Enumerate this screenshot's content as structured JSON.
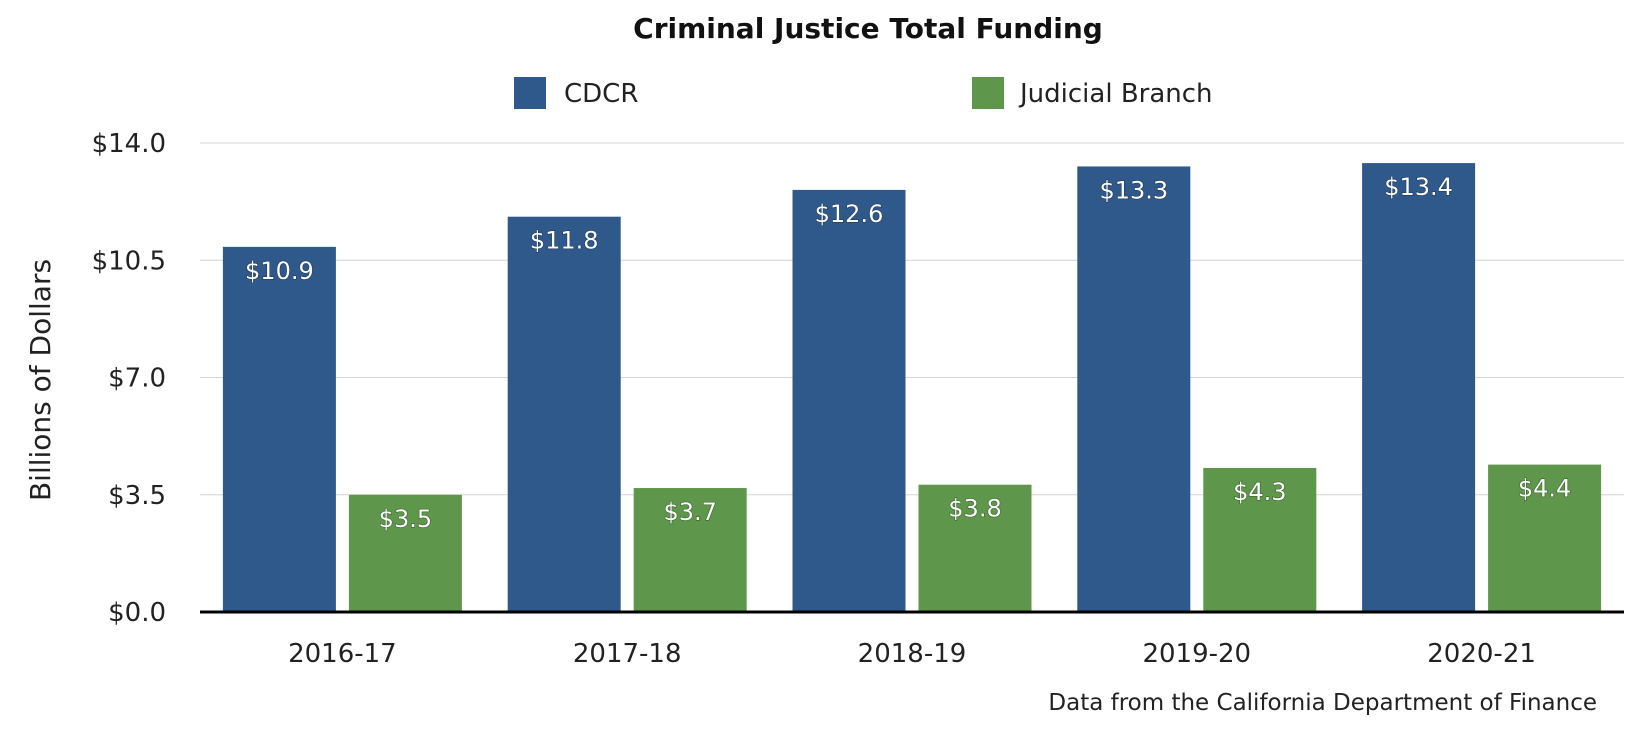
{
  "chart_data": {
    "type": "bar",
    "title": "Criminal Justice Total Funding",
    "ylabel": "Billions of Dollars",
    "xlabel": "",
    "categories": [
      "2016-17",
      "2017-18",
      "2018-19",
      "2019-20",
      "2020-21"
    ],
    "series": [
      {
        "name": "CDCR",
        "color": "#30598b",
        "values": [
          10.9,
          11.8,
          12.6,
          13.3,
          13.4
        ],
        "labels": [
          "$10.9",
          "$11.8",
          "$12.6",
          "$13.3",
          "$13.4"
        ]
      },
      {
        "name": "Judicial Branch",
        "color": "#5e964b",
        "values": [
          3.5,
          3.7,
          3.8,
          4.3,
          4.4
        ],
        "labels": [
          "$3.5",
          "$3.7",
          "$3.8",
          "$4.3",
          "$4.4"
        ]
      }
    ],
    "ylim": [
      0,
      14
    ],
    "yticks": [
      0,
      3.5,
      7,
      10.5,
      14
    ],
    "ytick_labels": [
      "$0.0",
      "$3.5",
      "$7.0",
      "$10.5",
      "$14.0"
    ],
    "grid": true,
    "legend_position": "top-center",
    "source_note": "Data from the California Department of Finance"
  }
}
